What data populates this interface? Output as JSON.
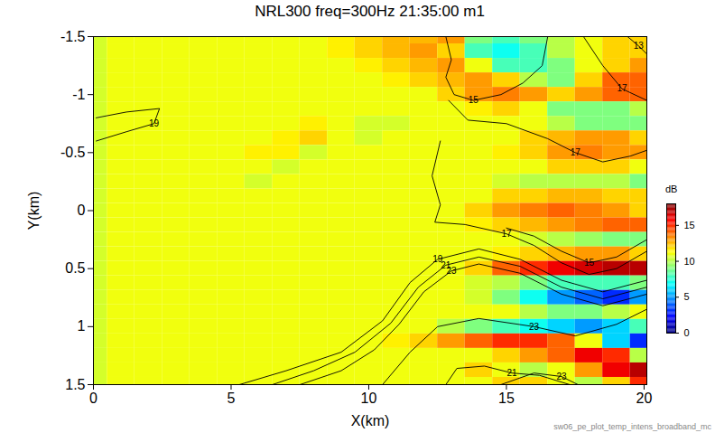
{
  "chart_data": {
    "type": "heatmap",
    "title": "NRL300 freq=300Hz 21:35:00 m1",
    "x_label": "X(km)",
    "y_label": "Y(km)",
    "footnote": "sw06_pe_plot_temp_intens_broadband_mc",
    "xlim": [
      0,
      20.1
    ],
    "xticks": [
      0,
      5,
      10,
      15,
      20
    ],
    "ylim": [
      -1.5,
      1.5
    ],
    "yticks": [
      -1.5,
      -1,
      -0.5,
      0,
      0.5,
      1,
      1.5
    ],
    "cells": {
      "x": [
        0,
        1,
        2,
        3,
        4,
        5,
        6,
        7,
        8,
        9,
        10,
        11,
        12,
        13,
        14,
        15,
        16,
        17,
        18,
        19,
        20
      ],
      "y": [
        -1.5,
        -1.375,
        -1.25,
        -1.125,
        -1,
        -0.875,
        -0.75,
        -0.625,
        -0.5,
        -0.375,
        -0.25,
        -0.125,
        0,
        0.125,
        0.25,
        0.375,
        0.5,
        0.625,
        0.75,
        0.875,
        1,
        1.125,
        1.25,
        1.375,
        1.5
      ],
      "values": [
        [
          10.5,
          11,
          11,
          11,
          11,
          11,
          11,
          11,
          11,
          11.5,
          12,
          12.5,
          12.5,
          13,
          9,
          8,
          9,
          10,
          11,
          12,
          12
        ],
        [
          10.5,
          11,
          11,
          11,
          11,
          11,
          11,
          11,
          11,
          11.5,
          12,
          12.5,
          13,
          12,
          8,
          7,
          8,
          10,
          11,
          12,
          12
        ],
        [
          10.5,
          11,
          11,
          11,
          11,
          11,
          11,
          11,
          11,
          11,
          11.5,
          12,
          12.5,
          13,
          11,
          8,
          8,
          9,
          11,
          12,
          13
        ],
        [
          10.5,
          11,
          11,
          11,
          11,
          11,
          11,
          11,
          11,
          11,
          11,
          11.5,
          12,
          12.5,
          13,
          12,
          10,
          9,
          12,
          14,
          14
        ],
        [
          10.5,
          11,
          11,
          11,
          11,
          11,
          11,
          11,
          11,
          11,
          11,
          11,
          11,
          12,
          13,
          13.5,
          13,
          12,
          13,
          14,
          14
        ],
        [
          10.5,
          11,
          11,
          11,
          11,
          11,
          11,
          11,
          11,
          11,
          11,
          11,
          11,
          11,
          11.5,
          12,
          11,
          9,
          9,
          9,
          10
        ],
        [
          10.5,
          11,
          11,
          11,
          11,
          11,
          11,
          11,
          11.5,
          11,
          10.5,
          10.5,
          11,
          11,
          11,
          11,
          11,
          10,
          9,
          9,
          9
        ],
        [
          10.5,
          11,
          11,
          11,
          11,
          11,
          11,
          11.5,
          12,
          11,
          10.5,
          11,
          11,
          11,
          11,
          11,
          12,
          12.5,
          13,
          13,
          12
        ],
        [
          10.5,
          11,
          11,
          11,
          11,
          11,
          11.5,
          11.5,
          10.5,
          11,
          11,
          11,
          11,
          11,
          11,
          11.5,
          12,
          13,
          13.5,
          13,
          13
        ],
        [
          10.5,
          11,
          11,
          11,
          11,
          11,
          11,
          10.5,
          11,
          11,
          11,
          11,
          11,
          11,
          11,
          11,
          11,
          12,
          12,
          12,
          11
        ],
        [
          10.5,
          11,
          11,
          11,
          11,
          11,
          10.5,
          11,
          11,
          11,
          11,
          11,
          11,
          11,
          11,
          10.5,
          10,
          10,
          10,
          10,
          9
        ],
        [
          10.5,
          11,
          11,
          11,
          11,
          11,
          11,
          11,
          11,
          11,
          11,
          11,
          11,
          11,
          11,
          12,
          12,
          12.5,
          12.5,
          12,
          12
        ],
        [
          10.5,
          11,
          11,
          11,
          11,
          11,
          11,
          11,
          11,
          11,
          11,
          11,
          11,
          11,
          12,
          13,
          13.5,
          14,
          13.5,
          13,
          12
        ],
        [
          10.5,
          11,
          11,
          11,
          11,
          11,
          11,
          11,
          11,
          11,
          11,
          11,
          11,
          11,
          11.5,
          12,
          12.5,
          13,
          13.5,
          14,
          14
        ],
        [
          10.5,
          11,
          11,
          11,
          11,
          11,
          11,
          11,
          11,
          11,
          11,
          11,
          11,
          11,
          11,
          11,
          10.5,
          10,
          9.5,
          9,
          9
        ],
        [
          10.5,
          11,
          11,
          11,
          11,
          11,
          11,
          11,
          11,
          11,
          11,
          11,
          11,
          11,
          11,
          11.5,
          12,
          12.5,
          13,
          13,
          12
        ],
        [
          10.5,
          11,
          11,
          11,
          11,
          11,
          11,
          11,
          11,
          11,
          11,
          11,
          11,
          11,
          12,
          14,
          15,
          16,
          16.5,
          17,
          17
        ],
        [
          10.5,
          11,
          11,
          11,
          11,
          11,
          11,
          11,
          11,
          11,
          11,
          11,
          11,
          11,
          10.5,
          10,
          9,
          8,
          8,
          8,
          9
        ],
        [
          10.5,
          11,
          11,
          11,
          11,
          11,
          11,
          11,
          11,
          11,
          11,
          11,
          11,
          11,
          10.5,
          9,
          7,
          5,
          4,
          3,
          5
        ],
        [
          10.5,
          11,
          11,
          11,
          11,
          11,
          11,
          11,
          11,
          11,
          11,
          11,
          11,
          11,
          11,
          11,
          10,
          9,
          9,
          10,
          11
        ],
        [
          10.5,
          11,
          11,
          11,
          11,
          11,
          11,
          11,
          11,
          11,
          11,
          11,
          11,
          10,
          9,
          8,
          7,
          6,
          5,
          6,
          8
        ],
        [
          10.5,
          11,
          11,
          11,
          11,
          11,
          11,
          11,
          11,
          11,
          11,
          11.5,
          12,
          13,
          14,
          15,
          15,
          14,
          11,
          6,
          3
        ],
        [
          10.5,
          11,
          11,
          11,
          11,
          11,
          11,
          11,
          11,
          11,
          11,
          11,
          11,
          11,
          11,
          12,
          13,
          14,
          16,
          15,
          10
        ],
        [
          10.5,
          11,
          11,
          11,
          11,
          11,
          11,
          11,
          11,
          11,
          11,
          11,
          11,
          11,
          12,
          11,
          10,
          11,
          13,
          16,
          17
        ],
        [
          10.5,
          11,
          11,
          11,
          11,
          11,
          11,
          11,
          11,
          11,
          11,
          11,
          11,
          11,
          11,
          12,
          12,
          11,
          10,
          12,
          15
        ]
      ]
    },
    "colorbar": {
      "label": "dB",
      "lim": [
        0,
        18
      ],
      "ticks": [
        0,
        5,
        10,
        15
      ]
    },
    "contours": [
      {
        "level": 19,
        "points": [
          [
            0.1,
            -0.8
          ],
          [
            1.2,
            -0.85
          ],
          [
            2.4,
            -0.88
          ],
          [
            2.2,
            -0.75
          ],
          [
            1.2,
            -0.68
          ],
          [
            0.1,
            -0.6
          ]
        ]
      },
      {
        "level": 15,
        "points": [
          [
            12.8,
            -1.5
          ],
          [
            13,
            -1.3
          ],
          [
            12.8,
            -1.15
          ],
          [
            13.1,
            -1.0
          ],
          [
            13.8,
            -0.95
          ],
          [
            14.8,
            -1.0
          ],
          [
            15.6,
            -1.1
          ],
          [
            16.3,
            -1.25
          ],
          [
            16.5,
            -1.5
          ]
        ]
      },
      {
        "level": 17,
        "points": [
          [
            12.9,
            -0.95
          ],
          [
            13.6,
            -0.78
          ],
          [
            15,
            -0.75
          ],
          [
            16.5,
            -0.62
          ],
          [
            17.5,
            -0.5
          ],
          [
            18.5,
            -0.42
          ],
          [
            19.5,
            -0.47
          ],
          [
            20.1,
            -0.52
          ]
        ]
      },
      {
        "level": 17,
        "points": [
          [
            17.8,
            -1.5
          ],
          [
            18.5,
            -1.25
          ],
          [
            19.2,
            -1.05
          ],
          [
            20.1,
            -0.95
          ]
        ]
      },
      {
        "level": 13,
        "points": [
          [
            19.4,
            -1.5
          ],
          [
            19.8,
            -1.42
          ],
          [
            20.1,
            -1.35
          ]
        ]
      },
      {
        "level": 17,
        "points": [
          [
            12.6,
            -0.6
          ],
          [
            12.3,
            -0.3
          ],
          [
            12.6,
            -0.05
          ],
          [
            12.4,
            0.1
          ],
          [
            13.5,
            0.12
          ],
          [
            15,
            0.2
          ],
          [
            16,
            0.3
          ],
          [
            17,
            0.45
          ],
          [
            18,
            0.55
          ],
          [
            19,
            0.5
          ],
          [
            20.1,
            0.35
          ]
        ]
      },
      {
        "level": 15,
        "points": [
          [
            15,
            0.15
          ],
          [
            16,
            0.22
          ],
          [
            17,
            0.35
          ],
          [
            18,
            0.45
          ],
          [
            19,
            0.4
          ],
          [
            20.1,
            0.25
          ]
        ]
      },
      {
        "level": 19,
        "points": [
          [
            5.3,
            1.5
          ],
          [
            7,
            1.38
          ],
          [
            9,
            1.22
          ],
          [
            10.5,
            0.95
          ],
          [
            11.5,
            0.62
          ],
          [
            12.5,
            0.42
          ],
          [
            14,
            0.33
          ],
          [
            15.5,
            0.42
          ],
          [
            17,
            0.6
          ],
          [
            18.5,
            0.7
          ],
          [
            20.1,
            0.6
          ]
        ]
      },
      {
        "level": 21,
        "points": [
          [
            6.5,
            1.5
          ],
          [
            8,
            1.38
          ],
          [
            9.5,
            1.22
          ],
          [
            10.8,
            0.97
          ],
          [
            11.8,
            0.66
          ],
          [
            12.8,
            0.47
          ],
          [
            14,
            0.4
          ],
          [
            15.5,
            0.48
          ],
          [
            17,
            0.66
          ],
          [
            18.5,
            0.76
          ],
          [
            20.1,
            0.66
          ]
        ]
      },
      {
        "level": 23,
        "points": [
          [
            7.5,
            1.5
          ],
          [
            9,
            1.38
          ],
          [
            10.2,
            1.2
          ],
          [
            11.1,
            0.98
          ],
          [
            12,
            0.7
          ],
          [
            13,
            0.52
          ],
          [
            14,
            0.46
          ],
          [
            15.5,
            0.54
          ],
          [
            17,
            0.72
          ],
          [
            18.5,
            0.82
          ],
          [
            20.1,
            0.72
          ]
        ]
      },
      {
        "level": 23,
        "points": [
          [
            10.5,
            1.5
          ],
          [
            11.5,
            1.22
          ],
          [
            12.5,
            1.0
          ],
          [
            14,
            0.93
          ],
          [
            16,
            1.0
          ],
          [
            17.5,
            1.08
          ],
          [
            19,
            0.98
          ],
          [
            20.1,
            0.85
          ]
        ]
      },
      {
        "level": 21,
        "points": [
          [
            12.8,
            1.5
          ],
          [
            13.2,
            1.36
          ],
          [
            14.2,
            1.34
          ],
          [
            15.2,
            1.4
          ],
          [
            16.2,
            1.42
          ],
          [
            17.3,
            1.5
          ]
        ]
      },
      {
        "level": 23,
        "points": [
          [
            14.8,
            1.5
          ],
          [
            16,
            1.4
          ],
          [
            17,
            1.43
          ],
          [
            17.6,
            1.5
          ]
        ]
      }
    ]
  }
}
